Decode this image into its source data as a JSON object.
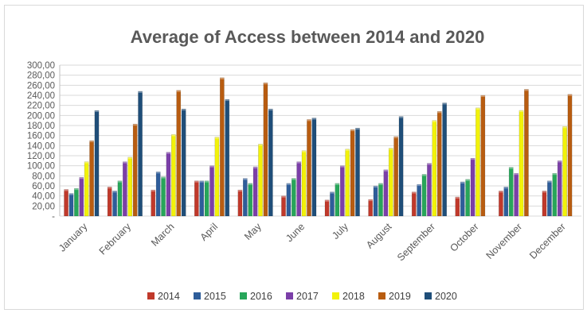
{
  "chart_data": {
    "type": "bar",
    "title": "Average of Access between 2014 and 2020",
    "xlabel": "",
    "ylabel": "",
    "ylim": [
      0,
      300
    ],
    "yticks": [
      0,
      20,
      40,
      60,
      80,
      100,
      120,
      140,
      160,
      180,
      200,
      220,
      240,
      260,
      280,
      300
    ],
    "ytick_labels": [
      "-",
      "20,00",
      "40,00",
      "60,00",
      "80,00",
      "100,00",
      "120,00",
      "140,00",
      "160,00",
      "180,00",
      "200,00",
      "220,00",
      "240,00",
      "260,00",
      "280,00",
      "300,00"
    ],
    "grid": true,
    "legend_position": "bottom",
    "categories": [
      "January",
      "February",
      "March",
      "April",
      "May",
      "June",
      "July",
      "August",
      "September",
      "October",
      "November",
      "December"
    ],
    "series": [
      {
        "name": "2014",
        "color": "#c0392b",
        "values": [
          53,
          58,
          52,
          70,
          52,
          40,
          32,
          33,
          48,
          38,
          50,
          50
        ]
      },
      {
        "name": "2015",
        "color": "#2e5d9a",
        "values": [
          45,
          50,
          88,
          70,
          75,
          65,
          48,
          60,
          63,
          68,
          58,
          70
        ]
      },
      {
        "name": "2016",
        "color": "#27a65a",
        "values": [
          55,
          70,
          78,
          70,
          65,
          75,
          65,
          65,
          83,
          73,
          97,
          85
        ]
      },
      {
        "name": "2017",
        "color": "#7b3fa8",
        "values": [
          77,
          108,
          127,
          100,
          98,
          108,
          100,
          92,
          105,
          115,
          85,
          110
        ]
      },
      {
        "name": "2018",
        "color": "#f2f20a",
        "values": [
          108,
          117,
          162,
          157,
          143,
          130,
          133,
          135,
          190,
          215,
          210,
          178
        ]
      },
      {
        "name": "2019",
        "color": "#b85c10",
        "values": [
          150,
          183,
          250,
          275,
          265,
          192,
          172,
          158,
          208,
          240,
          252,
          242
        ]
      },
      {
        "name": "2020",
        "color": "#1f4e79",
        "values": [
          210,
          248,
          213,
          232,
          213,
          195,
          175,
          198,
          225,
          null,
          null,
          null
        ]
      }
    ]
  }
}
